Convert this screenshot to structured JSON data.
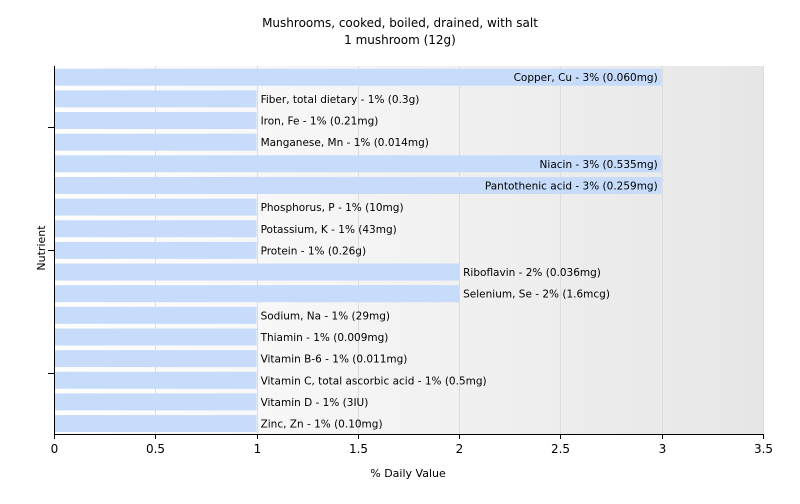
{
  "chart_data": {
    "type": "bar",
    "orientation": "horizontal",
    "title": "Mushrooms, cooked, boiled, drained, with salt",
    "subtitle": "1 mushroom (12g)",
    "xlabel": "% Daily Value",
    "ylabel": "Nutrient",
    "xlim": [
      0,
      3.5
    ],
    "xticks": [
      0,
      0.5,
      1,
      1.5,
      2,
      2.5,
      3,
      3.5
    ],
    "xtick_labels": [
      "0",
      "0.5",
      "1",
      "1.5",
      "2",
      "2.5",
      "3",
      "3.5"
    ],
    "grid": true,
    "bar_color": "#c6dcfa",
    "background_gradient": [
      "#ffffff",
      "#e6e6e6"
    ],
    "categories": [
      "Copper, Cu - 3% (0.060mg)",
      "Fiber, total dietary - 1% (0.3g)",
      "Iron, Fe - 1% (0.21mg)",
      "Manganese, Mn - 1% (0.014mg)",
      "Niacin - 3% (0.535mg)",
      "Pantothenic acid - 3% (0.259mg)",
      "Phosphorus, P - 1% (10mg)",
      "Potassium, K - 1% (43mg)",
      "Protein - 1% (0.26g)",
      "Riboflavin - 2% (0.036mg)",
      "Selenium, Se - 2% (1.6mcg)",
      "Sodium, Na - 1% (29mg)",
      "Thiamin - 1% (0.009mg)",
      "Vitamin B-6 - 1% (0.011mg)",
      "Vitamin C, total ascorbic acid - 1% (0.5mg)",
      "Vitamin D - 1% (3IU)",
      "Zinc, Zn - 1% (0.10mg)"
    ],
    "values": [
      3,
      1,
      1,
      1,
      3,
      3,
      1,
      1,
      1,
      2,
      2,
      1,
      1,
      1,
      1,
      1,
      1
    ]
  }
}
